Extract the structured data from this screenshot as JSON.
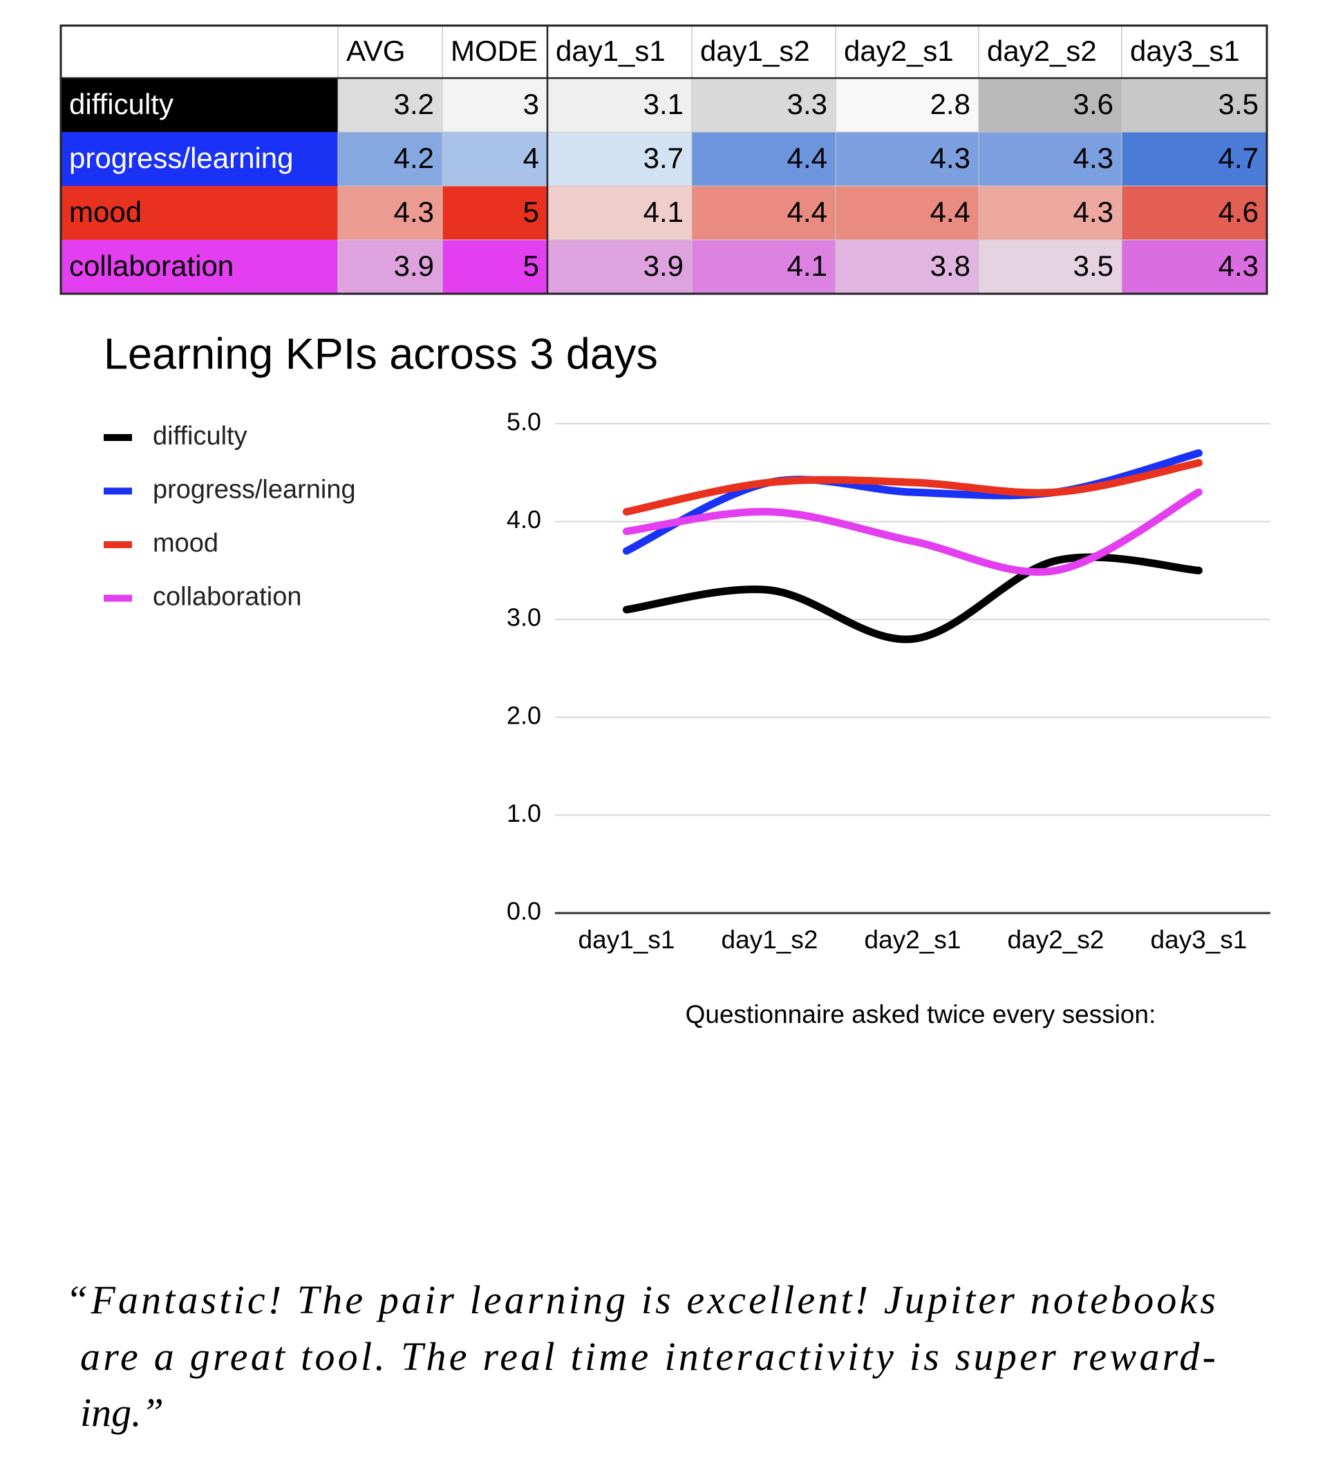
{
  "table": {
    "columns": [
      "AVG",
      "MODE",
      "day1_s1",
      "day1_s2",
      "day2_s1",
      "day2_s2",
      "day3_s1"
    ],
    "rows": [
      {
        "label": "difficulty",
        "label_color": "#000000",
        "label_text_color": "#ffffff",
        "values": [
          3.2,
          3,
          3.1,
          3.3,
          2.8,
          3.6,
          3.5
        ],
        "colors": [
          "#dcdcdc",
          "#f3f3f3",
          "#efefef",
          "#d9d9d9",
          "#f8f8f8",
          "#b9b9b9",
          "#c8c8c8"
        ]
      },
      {
        "label": "progress/learning",
        "label_color": "#1a32f5",
        "label_text_color": "#ffffff",
        "values": [
          4.2,
          4,
          3.7,
          4.4,
          4.3,
          4.3,
          4.7
        ],
        "colors": [
          "#86a8e0",
          "#a8c2ea",
          "#d3e2f2",
          "#6d95dd",
          "#7ca0df",
          "#7ca0df",
          "#4a7bd6"
        ]
      },
      {
        "label": "mood",
        "label_color": "#e8321f",
        "label_text_color": "#000000",
        "values": [
          4.3,
          5,
          4.1,
          4.4,
          4.4,
          4.3,
          4.6
        ],
        "colors": [
          "#ec9b92",
          "#e8321f",
          "#efcdca",
          "#ea8b81",
          "#ea8b81",
          "#eca79f",
          "#e35f53"
        ]
      },
      {
        "label": "collaboration",
        "label_color": "#e33ff0",
        "label_text_color": "#000000",
        "values": [
          3.9,
          5,
          3.9,
          4.1,
          3.8,
          3.5,
          4.3
        ],
        "colors": [
          "#dea3df",
          "#e33ff0",
          "#dea3df",
          "#dc82e1",
          "#e0b5df",
          "#e6d3e0",
          "#db6de2"
        ]
      }
    ]
  },
  "chart_data": {
    "type": "line",
    "title": "Learning KPIs across 3 days",
    "x_label": "Questionnaire asked twice every session:",
    "categories": [
      "day1_s1",
      "day1_s2",
      "day2_s1",
      "day2_s2",
      "day3_s1"
    ],
    "series": [
      {
        "name": "difficulty",
        "color": "#000000",
        "values": [
          3.1,
          3.3,
          2.8,
          3.6,
          3.5
        ]
      },
      {
        "name": "progress/learning",
        "color": "#1a32f5",
        "values": [
          3.7,
          4.4,
          4.3,
          4.3,
          4.7
        ]
      },
      {
        "name": "mood",
        "color": "#e8321f",
        "values": [
          4.1,
          4.4,
          4.4,
          4.3,
          4.6
        ]
      },
      {
        "name": "collaboration",
        "color": "#e33ff0",
        "values": [
          3.9,
          4.1,
          3.8,
          3.5,
          4.3
        ]
      }
    ],
    "ylim": [
      0,
      5
    ],
    "yticks": [
      {
        "value": 0,
        "label": "0.0"
      },
      {
        "value": 1,
        "label": "1.0"
      },
      {
        "value": 2,
        "label": "2.0"
      },
      {
        "value": 3,
        "label": "3.0"
      },
      {
        "value": 4,
        "label": "4.0"
      },
      {
        "value": 5,
        "label": "5.0"
      }
    ],
    "grid": true,
    "legend": "left",
    "smooth": true
  },
  "quote": {
    "lines": [
      "“Fantastic! The pair learning is excellent! Jupiter notebooks",
      "are a great tool. The real time interactivity is super reward-",
      "ing.”"
    ]
  }
}
